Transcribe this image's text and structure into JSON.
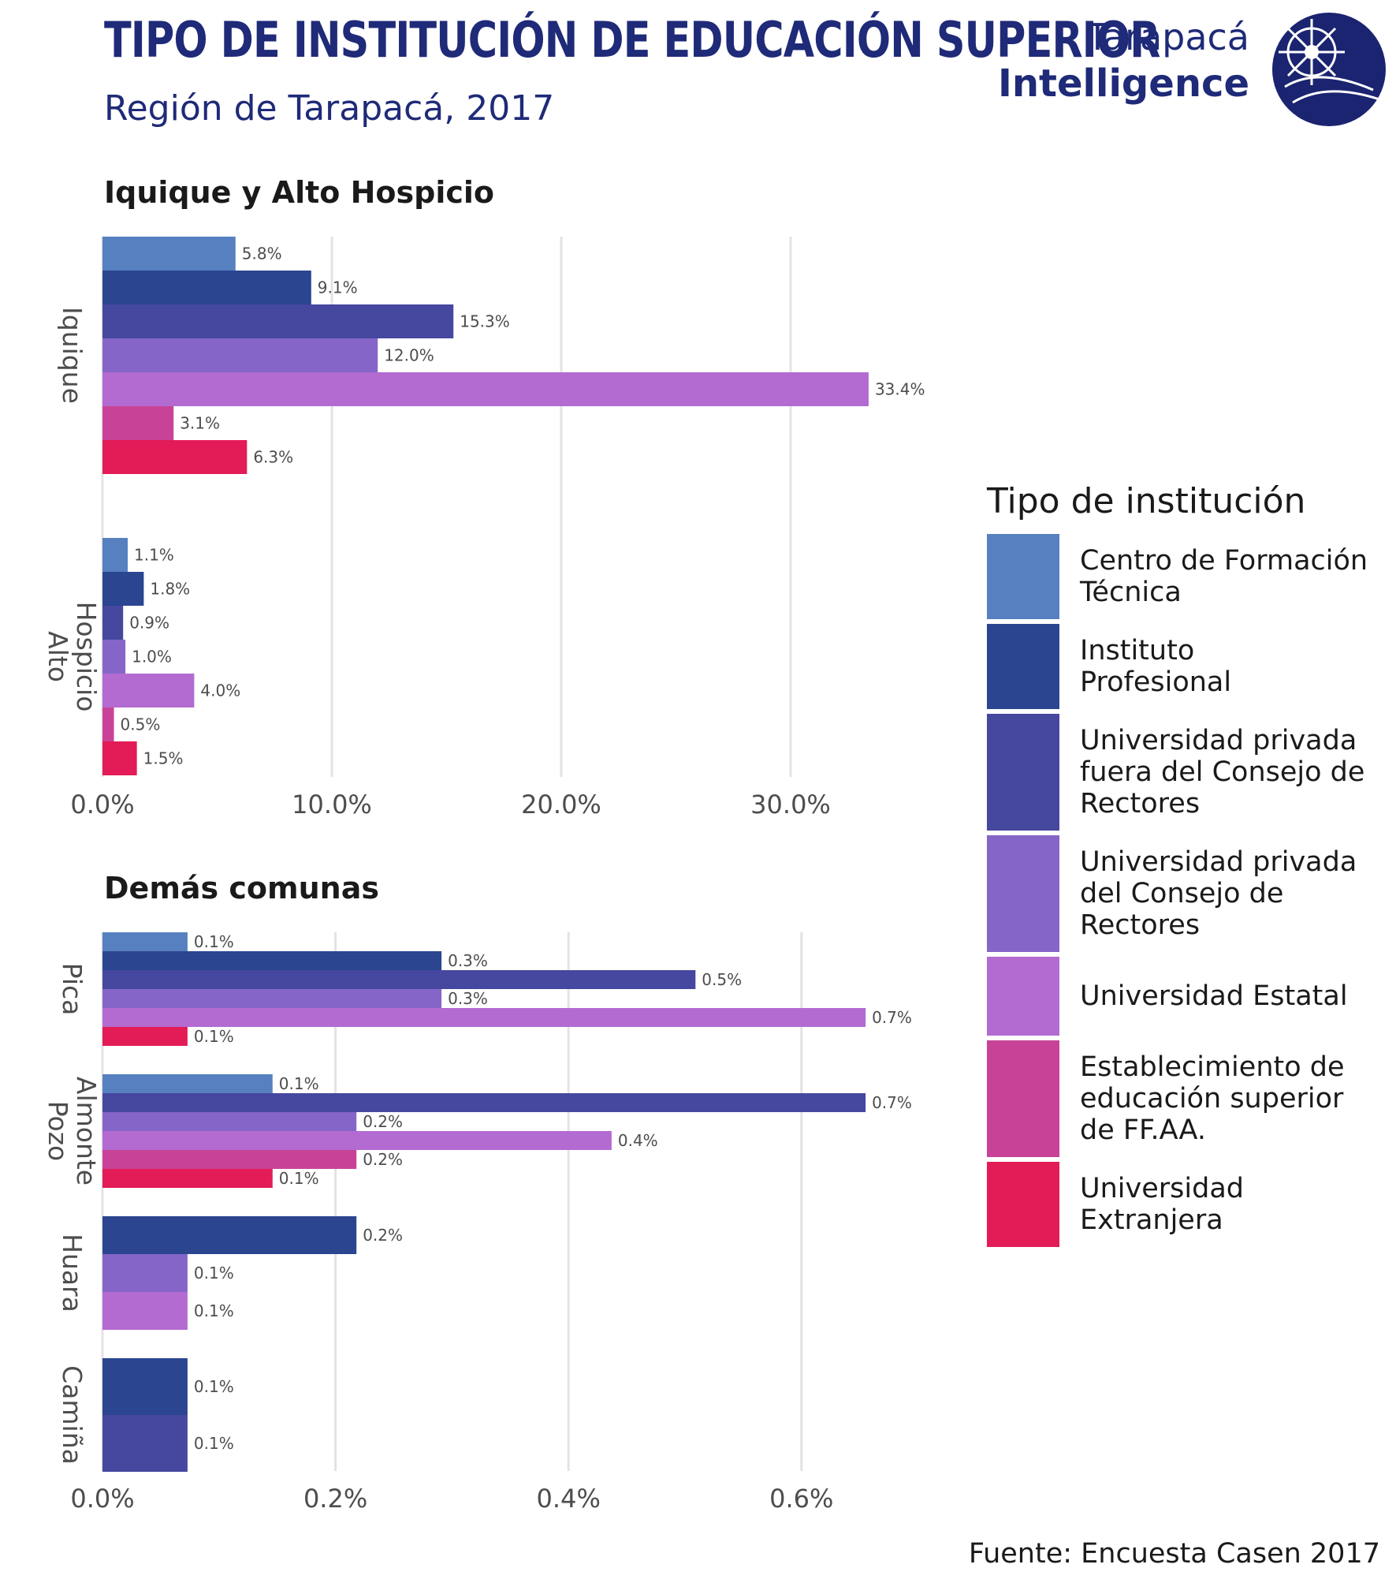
{
  "header": {
    "title": "TIPO DE INSTITUCIÓN DE EDUCACIÓN SUPERIOR",
    "subtitle": "Región de Tarapacá, 2017"
  },
  "logo": {
    "line1": "Tarapacá",
    "line2": "Intelligence",
    "icon": "globe-logo-icon"
  },
  "colors": {
    "Centro de Formación Técnica": "#5680c0",
    "Instituto Profesional": "#2b4590",
    "Universidad privada fuera del Consejo de Rectores": "#46479f",
    "Universidad privada del Consejo de Rectores": "#8566c8",
    "Universidad Estatal": "#b36ad1",
    "Establecimiento de educación superior de FF.AA.": "#c84397",
    "Universidad Extranjera": "#e31b57"
  },
  "legend": {
    "title": "Tipo de institución",
    "items": [
      {
        "label": "Centro de Formación Técnica",
        "lines": [
          "Centro de Formación",
          "Técnica"
        ]
      },
      {
        "label": "Instituto Profesional",
        "lines": [
          "Instituto",
          "Profesional"
        ]
      },
      {
        "label": "Universidad privada fuera del Consejo de Rectores",
        "lines": [
          "Universidad privada",
          "fuera del Consejo de",
          "Rectores"
        ]
      },
      {
        "label": "Universidad privada del Consejo de Rectores",
        "lines": [
          "Universidad privada",
          "del Consejo de",
          "Rectores"
        ]
      },
      {
        "label": "Universidad Estatal",
        "lines": [
          "Universidad Estatal"
        ]
      },
      {
        "label": "Establecimiento de educación superior de FF.AA.",
        "lines": [
          "Establecimiento de",
          "educación superior",
          "de FF.AA."
        ]
      },
      {
        "label": "Universidad Extranjera",
        "lines": [
          "Universidad",
          "Extranjera"
        ]
      }
    ]
  },
  "source": "Fuente: Encuesta Casen 2017",
  "chart_data": [
    {
      "type": "bar",
      "orientation": "horizontal",
      "title": "Iquique y Alto Hospicio",
      "xlim": [
        0,
        36
      ],
      "ticks": [
        0,
        10,
        20,
        30
      ],
      "tick_labels": [
        "0.0%",
        "10.0%",
        "20.0%",
        "30.0%"
      ],
      "grid": true,
      "groups": [
        {
          "name": "Iquique",
          "label_lines": [
            "Iquique"
          ],
          "bars": [
            {
              "series": "Centro de Formación Técnica",
              "value": 5.8,
              "label": "5.8%"
            },
            {
              "series": "Instituto Profesional",
              "value": 9.1,
              "label": "9.1%"
            },
            {
              "series": "Universidad privada fuera del Consejo de Rectores",
              "value": 15.3,
              "label": "15.3%"
            },
            {
              "series": "Universidad privada del Consejo de Rectores",
              "value": 12.0,
              "label": "12.0%"
            },
            {
              "series": "Universidad Estatal",
              "value": 33.4,
              "label": "33.4%"
            },
            {
              "series": "Establecimiento de educación superior de FF.AA.",
              "value": 3.1,
              "label": "3.1%"
            },
            {
              "series": "Universidad Extranjera",
              "value": 6.3,
              "label": "6.3%"
            }
          ]
        },
        {
          "name": "Alto Hospicio",
          "label_lines": [
            "Alto",
            "Hospicio"
          ],
          "bars": [
            {
              "series": "Centro de Formación Técnica",
              "value": 1.1,
              "label": "1.1%"
            },
            {
              "series": "Instituto Profesional",
              "value": 1.8,
              "label": "1.8%"
            },
            {
              "series": "Universidad privada fuera del Consejo de Rectores",
              "value": 0.9,
              "label": "0.9%"
            },
            {
              "series": "Universidad privada del Consejo de Rectores",
              "value": 1.0,
              "label": "1.0%"
            },
            {
              "series": "Universidad Estatal",
              "value": 4.0,
              "label": "4.0%"
            },
            {
              "series": "Establecimiento de educación superior de FF.AA.",
              "value": 0.5,
              "label": "0.5%"
            },
            {
              "series": "Universidad Extranjera",
              "value": 1.5,
              "label": "1.5%"
            }
          ]
        }
      ]
    },
    {
      "type": "bar",
      "orientation": "horizontal",
      "title": "Demás comunas",
      "xlim": [
        0,
        0.7
      ],
      "ticks": [
        0,
        0.2,
        0.4,
        0.6
      ],
      "tick_labels": [
        "0.0%",
        "0.2%",
        "0.4%",
        "0.6%"
      ],
      "grid": true,
      "groups": [
        {
          "name": "Pica",
          "label_lines": [
            "Pica"
          ],
          "bars": [
            {
              "series": "Centro de Formación Técnica",
              "value": 0.073,
              "label": "0.1%"
            },
            {
              "series": "Instituto Profesional",
              "value": 0.291,
              "label": "0.3%"
            },
            {
              "series": "Universidad privada fuera del Consejo de Rectores",
              "value": 0.509,
              "label": "0.5%"
            },
            {
              "series": "Universidad privada del Consejo de Rectores",
              "value": 0.291,
              "label": "0.3%"
            },
            {
              "series": "Universidad Estatal",
              "value": 0.655,
              "label": "0.7%"
            },
            {
              "series": "Universidad Extranjera",
              "value": 0.073,
              "label": "0.1%"
            }
          ]
        },
        {
          "name": "Pozo Almonte",
          "label_lines": [
            "Pozo",
            "Almonte"
          ],
          "bars": [
            {
              "series": "Centro de Formación Técnica",
              "value": 0.146,
              "label": "0.1%"
            },
            {
              "series": "Universidad privada fuera del Consejo de Rectores",
              "value": 0.655,
              "label": "0.7%"
            },
            {
              "series": "Universidad privada del Consejo de Rectores",
              "value": 0.218,
              "label": "0.2%"
            },
            {
              "series": "Universidad Estatal",
              "value": 0.437,
              "label": "0.4%"
            },
            {
              "series": "Establecimiento de educación superior de FF.AA.",
              "value": 0.218,
              "label": "0.2%"
            },
            {
              "series": "Universidad Extranjera",
              "value": 0.146,
              "label": "0.1%"
            }
          ]
        },
        {
          "name": "Huara",
          "label_lines": [
            "Huara"
          ],
          "bars": [
            {
              "series": "Instituto Profesional",
              "value": 0.218,
              "label": "0.2%"
            },
            {
              "series": "Universidad privada del Consejo de Rectores",
              "value": 0.073,
              "label": "0.1%"
            },
            {
              "series": "Universidad Estatal",
              "value": 0.073,
              "label": "0.1%"
            }
          ]
        },
        {
          "name": "Camiña",
          "label_lines": [
            "Camiña"
          ],
          "bars": [
            {
              "series": "Instituto Profesional",
              "value": 0.073,
              "label": "0.1%"
            },
            {
              "series": "Universidad privada fuera del Consejo de Rectores",
              "value": 0.073,
              "label": "0.1%"
            }
          ]
        }
      ]
    }
  ]
}
